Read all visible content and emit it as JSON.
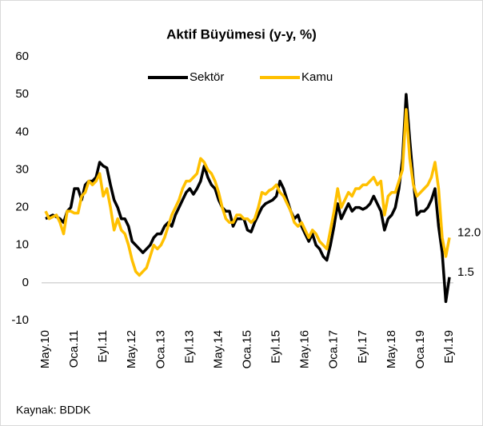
{
  "chart_data": {
    "type": "line",
    "title": "Aktif Büyümesi (y-y, %)",
    "source": "Kaynak: BDDK",
    "legend": "top",
    "categories": [
      "May.10",
      null,
      null,
      null,
      null,
      null,
      null,
      null,
      "Oca.11",
      null,
      null,
      null,
      null,
      null,
      null,
      null,
      "Eyl.11",
      null,
      null,
      null,
      null,
      null,
      null,
      null,
      "May.12",
      null,
      null,
      null,
      null,
      null,
      null,
      null,
      "Oca.13",
      null,
      null,
      null,
      null,
      null,
      null,
      null,
      "Eyl.13",
      null,
      null,
      null,
      null,
      null,
      null,
      null,
      "May.14",
      null,
      null,
      null,
      null,
      null,
      null,
      null,
      "Oca.15",
      null,
      null,
      null,
      null,
      null,
      null,
      null,
      "Eyl.15",
      null,
      null,
      null,
      null,
      null,
      null,
      null,
      "May.16",
      null,
      null,
      null,
      null,
      null,
      null,
      null,
      "Oca.17",
      null,
      null,
      null,
      null,
      null,
      null,
      null,
      "Eyl.17",
      null,
      null,
      null,
      null,
      null,
      null,
      null,
      "May.18",
      null,
      null,
      null,
      null,
      null,
      null,
      null,
      "Oca.19",
      null,
      null,
      null,
      null,
      null,
      null,
      null,
      "Eyl.19"
    ],
    "series": [
      {
        "name": "Sektör",
        "color": "#000000",
        "values": [
          17,
          17.5,
          18,
          17.5,
          17,
          16,
          19,
          20,
          25,
          25,
          22,
          26,
          27,
          27,
          28,
          32,
          31,
          30.5,
          26,
          22,
          20,
          17,
          17,
          15,
          11,
          10,
          9,
          8,
          9,
          10,
          12,
          13,
          13,
          15,
          16,
          15,
          18,
          20,
          22,
          24,
          25,
          23.5,
          25,
          27,
          31,
          28,
          26,
          25,
          22,
          20,
          19,
          19,
          15,
          17,
          17,
          17,
          14,
          13.5,
          16,
          18,
          20,
          21,
          21.5,
          22,
          23,
          27,
          25,
          22,
          19,
          17,
          18,
          15,
          13,
          11,
          13,
          10,
          9,
          7,
          6,
          10,
          15,
          21,
          17,
          19,
          21,
          19,
          20,
          20,
          19.5,
          20,
          21,
          23,
          21,
          19,
          14,
          17,
          18,
          20,
          25,
          33,
          50,
          38,
          27,
          18,
          19,
          19,
          20,
          22,
          25,
          15,
          8,
          -5,
          1.5
        ]
      },
      {
        "name": "Kamu",
        "color": "#ffc000",
        "values": [
          19,
          17,
          17.5,
          18,
          16,
          13,
          19,
          19,
          18.5,
          18.5,
          23,
          24,
          27,
          26,
          27,
          29,
          23,
          25,
          20,
          14,
          17,
          14,
          13,
          10,
          6,
          3,
          2,
          3,
          4,
          7,
          10,
          9,
          10,
          12,
          15,
          18,
          20,
          22,
          25,
          27,
          27,
          28,
          29,
          33,
          32,
          30,
          29,
          27,
          24,
          20,
          17,
          16,
          16,
          18,
          18,
          17,
          17,
          16,
          17,
          20,
          24,
          23.5,
          24.5,
          25,
          26,
          24,
          23,
          21,
          19,
          16,
          15,
          16,
          14,
          12,
          14,
          13,
          11,
          10,
          9,
          14,
          19,
          25,
          20,
          22,
          24,
          23,
          25,
          25,
          26,
          26,
          27,
          28,
          26,
          27,
          18,
          23,
          24,
          24,
          27,
          30,
          46,
          33,
          26,
          23,
          24,
          25,
          26,
          28,
          32,
          25,
          12,
          7,
          12
        ],
        "value_labels": [
          null,
          null,
          null,
          null,
          null,
          null,
          null,
          null,
          null,
          null,
          null,
          null,
          null,
          null,
          null,
          null,
          null,
          null,
          null,
          null,
          null,
          null,
          null,
          null,
          null,
          null,
          null,
          null,
          null,
          null,
          null,
          null,
          null,
          null,
          null,
          null,
          null,
          null,
          null,
          null,
          null,
          null,
          null,
          null,
          null,
          null,
          null,
          null,
          null,
          null,
          null,
          null,
          null,
          null,
          null,
          null,
          null,
          null,
          null,
          null,
          null,
          null,
          null,
          null,
          null,
          null,
          null,
          null,
          null,
          null,
          null,
          null,
          null,
          null,
          null,
          null,
          null,
          null,
          null,
          null,
          null,
          null,
          null,
          null,
          null,
          null,
          null,
          null,
          null,
          null,
          null,
          null,
          null,
          null,
          null,
          null,
          null,
          null,
          null,
          null,
          null,
          null,
          null,
          null,
          null,
          null,
          null,
          null,
          null,
          null,
          null,
          null,
          "12.0"
        ]
      }
    ],
    "ylim": [
      -10,
      60
    ],
    "yticks": [
      -10,
      0,
      10,
      20,
      30,
      40,
      50,
      60
    ]
  }
}
